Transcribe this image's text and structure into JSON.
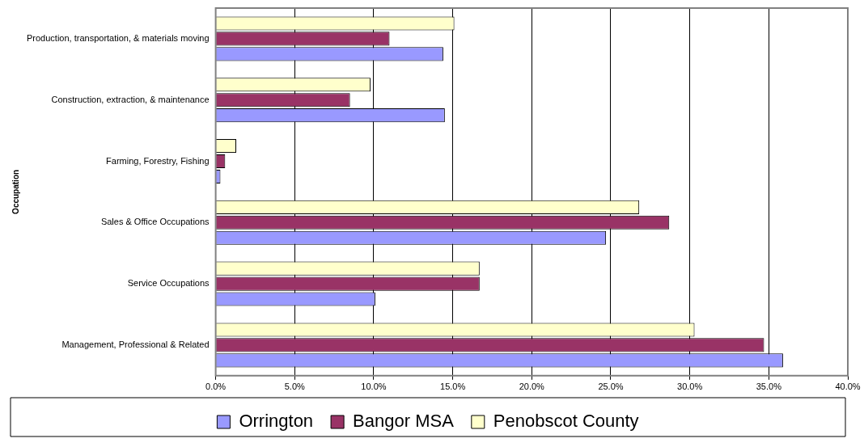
{
  "chart_data": {
    "type": "bar",
    "orientation": "horizontal",
    "ylabel": "Occupation",
    "categories": [
      "Production, transportation, & materials moving",
      "Construction, extraction, & maintenance",
      "Farming, Forestry, Fishing",
      "Sales & Office Occupations",
      "Service Occupations",
      "Management, Professional & Related"
    ],
    "series": [
      {
        "name": "Orrington",
        "color": "#9999ff",
        "values": [
          14.4,
          14.5,
          0.3,
          24.7,
          10.1,
          35.9
        ]
      },
      {
        "name": "Bangor MSA",
        "color": "#993366",
        "values": [
          11.0,
          8.5,
          0.6,
          28.7,
          16.7,
          34.7
        ]
      },
      {
        "name": "Penobscot County",
        "color": "#ffffcc",
        "values": [
          15.1,
          9.8,
          1.3,
          26.8,
          16.7,
          30.3
        ]
      }
    ],
    "xlim": [
      0,
      40
    ],
    "xticks": [
      {
        "value": 0,
        "label": "0.0%"
      },
      {
        "value": 5,
        "label": "5.0%"
      },
      {
        "value": 10,
        "label": "10.0%"
      },
      {
        "value": 15,
        "label": "15.0%"
      },
      {
        "value": 20,
        "label": "20.0%"
      },
      {
        "value": 25,
        "label": "25.0%"
      },
      {
        "value": 30,
        "label": "30.0%"
      },
      {
        "value": 35,
        "label": "35.0%"
      },
      {
        "value": 40,
        "label": "40.0%"
      }
    ],
    "grid": "x",
    "legend": "bottom"
  }
}
